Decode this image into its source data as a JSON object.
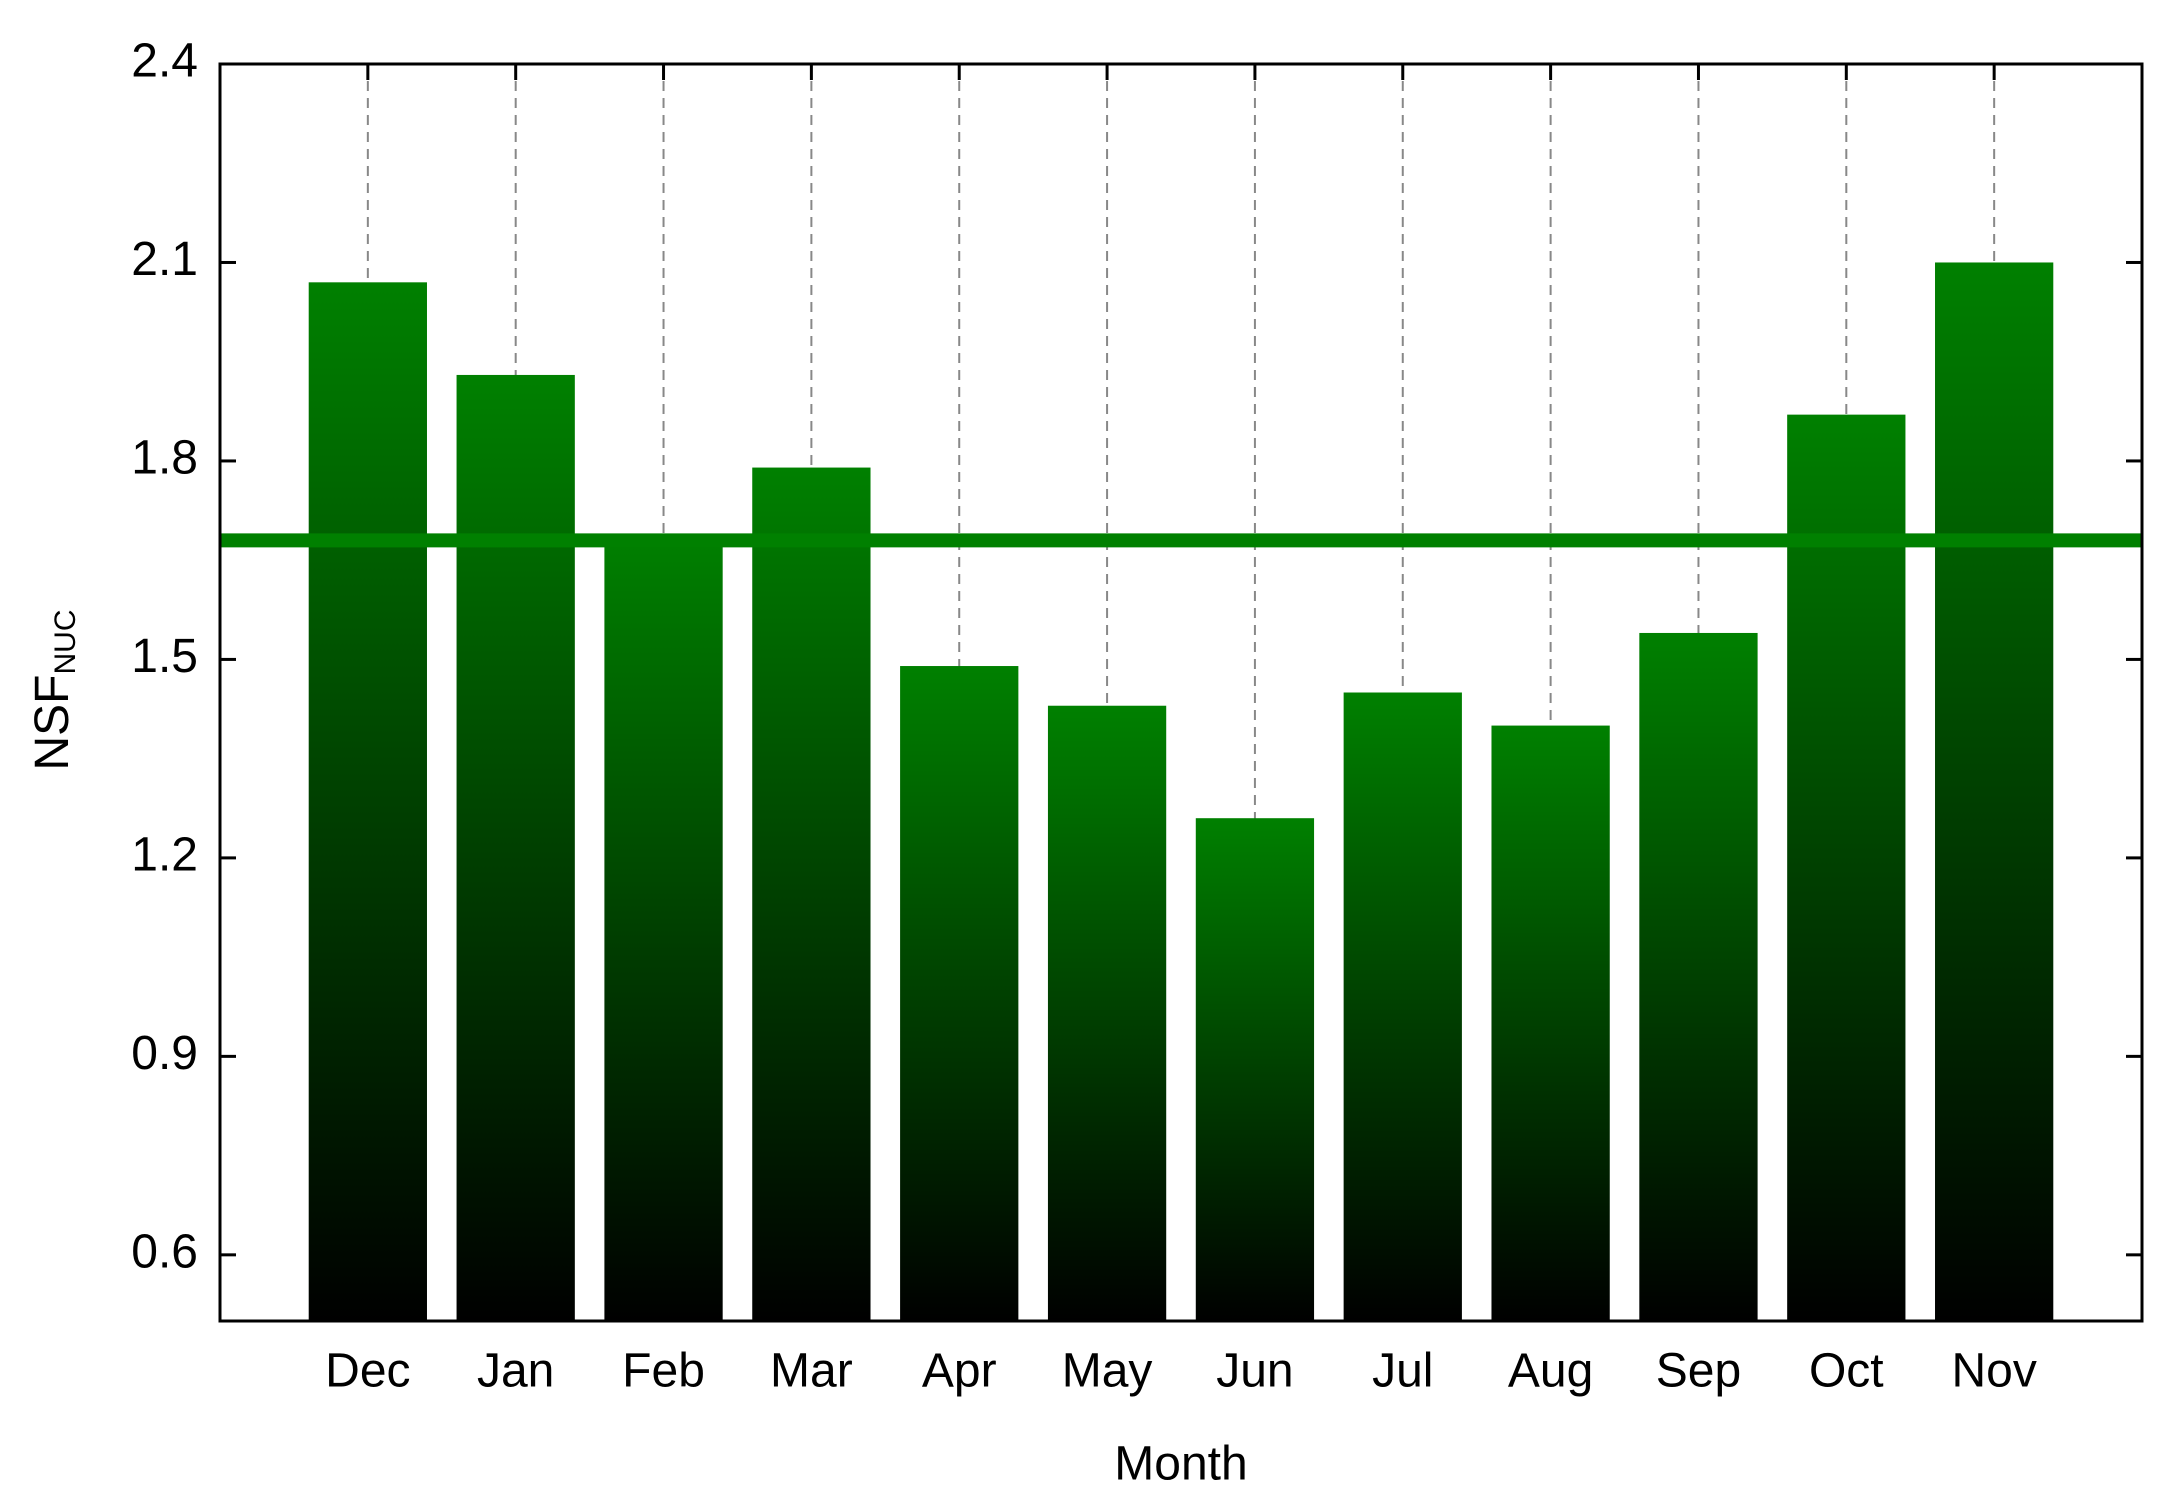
{
  "chart_data": {
    "type": "bar",
    "x_label": "Month",
    "y_label": "NSF",
    "y_label_subscript": "NUC",
    "categories": [
      "Dec",
      "Jan",
      "Feb",
      "Mar",
      "Apr",
      "May",
      "Jun",
      "Jul",
      "Aug",
      "Sep",
      "Oct",
      "Nov"
    ],
    "values": [
      2.07,
      1.93,
      1.69,
      1.79,
      1.49,
      1.43,
      1.26,
      1.45,
      1.4,
      1.54,
      1.87,
      2.1
    ],
    "color": "#008000",
    "mean_line": 1.68,
    "mean_line_color": "#008000",
    "ylim": [
      0.5,
      2.4
    ],
    "yticks": [
      0.6,
      0.9,
      1.2,
      1.5,
      1.8,
      2.1,
      2.4
    ],
    "category_grid": true
  }
}
